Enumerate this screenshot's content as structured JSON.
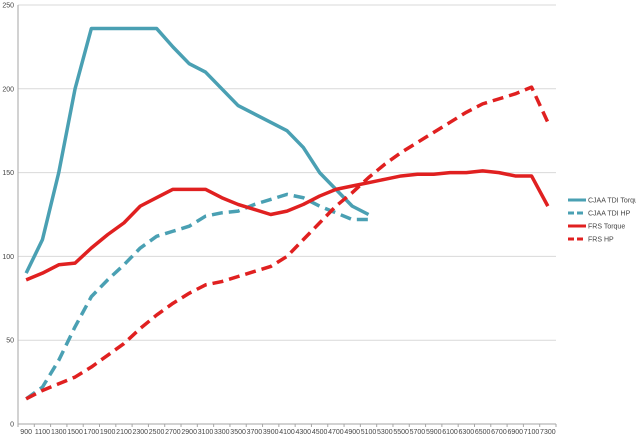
{
  "chart_data": {
    "type": "line",
    "title": "",
    "xlabel": "",
    "ylabel": "",
    "ylim": [
      0,
      250
    ],
    "y_ticks": [
      0,
      50,
      100,
      150,
      200,
      250
    ],
    "grid": "horizontal",
    "legend_position": "right",
    "categories": [
      "900",
      "1100",
      "1300",
      "1500",
      "1700",
      "1900",
      "2100",
      "2300",
      "2500",
      "2700",
      "2900",
      "3100",
      "3300",
      "3500",
      "3700",
      "3900",
      "4100",
      "4300",
      "4500",
      "4700",
      "4900",
      "5100",
      "5300",
      "5500",
      "5700",
      "5900",
      "6100",
      "6300",
      "6500",
      "6700",
      "6900",
      "7100",
      "7300"
    ],
    "series": [
      {
        "name": "CJAA TDI Torque",
        "color": "#4aa0b3",
        "dash": "solid",
        "values": [
          90,
          110,
          150,
          200,
          236,
          236,
          236,
          236,
          236,
          225,
          215,
          210,
          200,
          190,
          185,
          180,
          175,
          165,
          150,
          140,
          130,
          125,
          null,
          null,
          null,
          null,
          null,
          null,
          null,
          null,
          null,
          null,
          null
        ]
      },
      {
        "name": "CJAA TDI HP",
        "color": "#4aa0b3",
        "dash": "dashed",
        "values": [
          15,
          22,
          38,
          58,
          76,
          86,
          95,
          105,
          112,
          115,
          118,
          124,
          126,
          127,
          131,
          134,
          137,
          135,
          130,
          126,
          122,
          122,
          null,
          null,
          null,
          null,
          null,
          null,
          null,
          null,
          null,
          null,
          null
        ]
      },
      {
        "name": "FRS Torque",
        "color": "#e02020",
        "dash": "solid",
        "values": [
          86,
          90,
          95,
          96,
          105,
          113,
          120,
          130,
          135,
          140,
          140,
          140,
          135,
          131,
          128,
          125,
          127,
          131,
          136,
          140,
          142,
          144,
          146,
          148,
          149,
          149,
          150,
          150,
          151,
          150,
          148,
          148,
          130
        ]
      },
      {
        "name": "FRS HP",
        "color": "#e02020",
        "dash": "dashed",
        "values": [
          15,
          20,
          24,
          28,
          34,
          41,
          48,
          57,
          65,
          72,
          78,
          83,
          85,
          88,
          91,
          94,
          100,
          110,
          120,
          130,
          138,
          147,
          155,
          162,
          168,
          174,
          180,
          186,
          191,
          194,
          197,
          201,
          180
        ]
      }
    ]
  }
}
